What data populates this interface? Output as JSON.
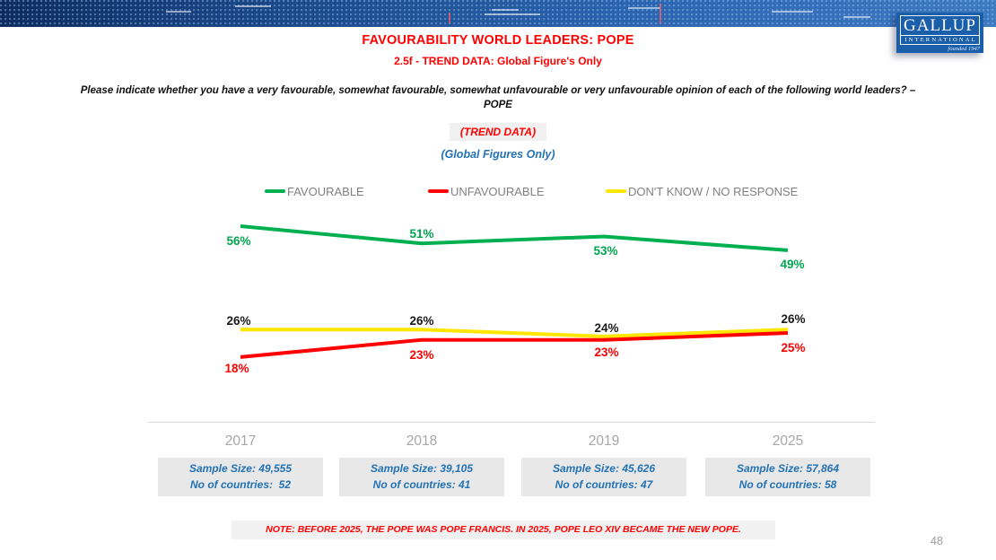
{
  "logo": {
    "name": "GALLUP",
    "sub": "INTERNATIONAL",
    "founded": "founded 1947"
  },
  "header": {
    "title": "FAVOURABILITY WORLD LEADERS: POPE",
    "subtitle": "2.5f - TREND DATA: Global Figure's Only",
    "question_line1": "Please indicate whether you have a very favourable, somewhat favourable, somewhat unfavourable or very unfavourable opinion of each of the following world leaders? –",
    "question_line2": "POPE",
    "trend_badge": "(TREND DATA)",
    "global_figures": "(Global Figures Only)"
  },
  "chart_data": {
    "type": "line",
    "categories": [
      "2017",
      "2018",
      "2019",
      "2025"
    ],
    "value_suffix": "%",
    "legend_position": "top",
    "grid": false,
    "ylim": [
      0,
      100
    ],
    "series": [
      {
        "name": "FAVOURABLE",
        "color": "#00b050",
        "label_color": "#00a550",
        "values": [
          56,
          51,
          53,
          49
        ],
        "labels": [
          "56%",
          "51%",
          "53%",
          "49%"
        ]
      },
      {
        "name": "UNFAVOURABLE",
        "color": "#ff0000",
        "label_color": "#ff0000",
        "values": [
          18,
          23,
          23,
          25
        ],
        "labels": [
          "18%",
          "23%",
          "23%",
          "25%"
        ]
      },
      {
        "name": "DON'T KNOW / NO RESPONSE",
        "color": "#ffe600",
        "label_color": "#1a1a1a",
        "values": [
          26,
          26,
          24,
          26
        ],
        "labels": [
          "26%",
          "26%",
          "24%",
          "26%"
        ]
      }
    ]
  },
  "footer": {
    "samples": [
      {
        "year": "2017",
        "line1": "Sample Size: 49,555",
        "line2": "No of countries:  52"
      },
      {
        "year": "2018",
        "line1": "Sample Size: 39,105",
        "line2": "No of countries: 41"
      },
      {
        "year": "2019",
        "line1": "Sample Size: 45,626",
        "line2": "No of countries: 47"
      },
      {
        "year": "2025",
        "line1": "Sample Size: 57,864",
        "line2": "No of countries: 58"
      }
    ],
    "note": "NOTE: BEFORE 2025, THE POPE WAS POPE FRANCIS. IN 2025, POPE LEO XIV BECAME THE NEW POPE.",
    "page_number": "48"
  }
}
